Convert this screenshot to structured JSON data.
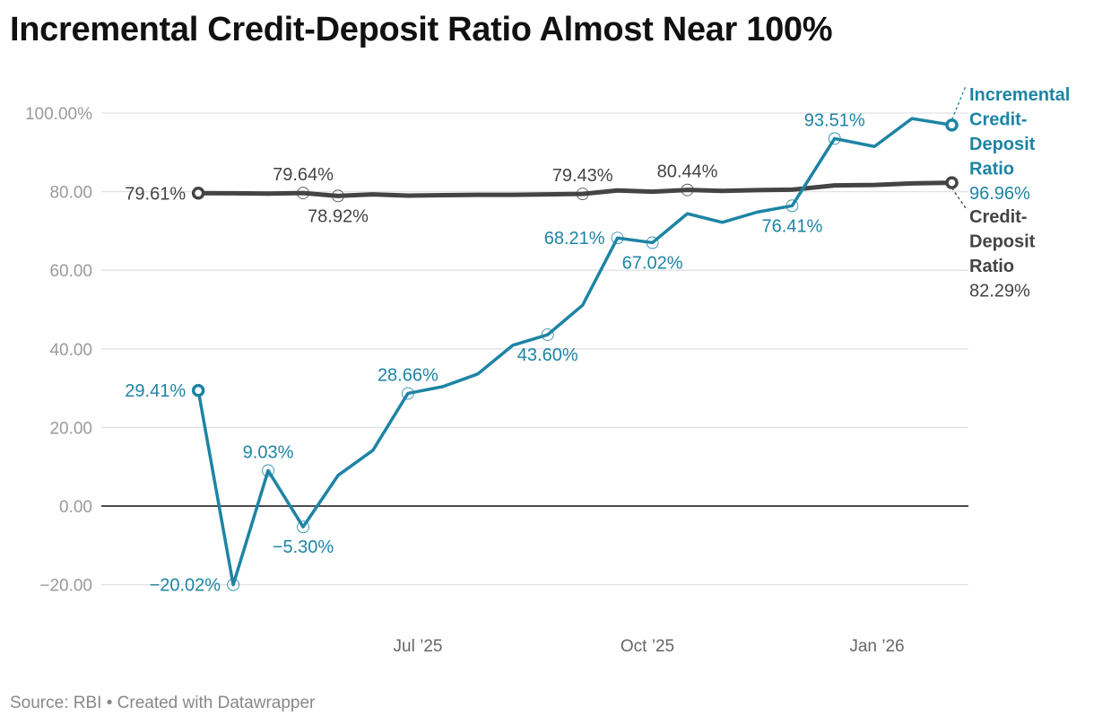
{
  "title": "Incremental Credit-Deposit Ratio Almost Near 100%",
  "footer": {
    "source": "Source: RBI",
    "separator": "•",
    "credit": "Created with Datawrapper"
  },
  "chart_data": {
    "type": "line",
    "title": "Incremental Credit-Deposit Ratio Almost Near 100%",
    "xlabel": "",
    "ylabel": "",
    "x": [
      "2025-04-04",
      "2025-04-18",
      "2025-05-02",
      "2025-05-16",
      "2025-05-30",
      "2025-06-13",
      "2025-06-27",
      "2025-07-11",
      "2025-07-25",
      "2025-08-08",
      "2025-08-22",
      "2025-09-05",
      "2025-09-19",
      "2025-10-03",
      "2025-10-17",
      "2025-10-31",
      "2025-11-14",
      "2025-11-28",
      "2025-12-15",
      "2025-12-31",
      "2026-01-15",
      "2026-01-31"
    ],
    "ylim": [
      -20,
      100
    ],
    "yticks": [
      {
        "value": 100,
        "label": "100.00%"
      },
      {
        "value": 80,
        "label": "80.00"
      },
      {
        "value": 60,
        "label": "60.00"
      },
      {
        "value": 40,
        "label": "40.00"
      },
      {
        "value": 20,
        "label": "20.00"
      },
      {
        "value": 0,
        "label": "0.00"
      },
      {
        "value": -20,
        "label": "−20.00"
      }
    ],
    "xticks": [
      {
        "date": "2025-07-01",
        "label": "Jul ’25"
      },
      {
        "date": "2025-10-01",
        "label": "Oct ’25"
      },
      {
        "date": "2026-01-01",
        "label": "Jan ’26"
      }
    ],
    "grid": true,
    "legend": "direct labels at right end",
    "series": [
      {
        "name_lines": [
          "Incremental",
          "Credit-",
          "Deposit",
          "Ratio"
        ],
        "name": "Incremental Credit-Deposit Ratio",
        "color": "#1d84a4",
        "end_value_label": "96.96%",
        "values": [
          29.41,
          -20.02,
          9.03,
          -5.3,
          7.8,
          14.2,
          28.66,
          30.4,
          33.6,
          40.9,
          43.6,
          51.1,
          68.21,
          67.02,
          74.4,
          72.2,
          74.8,
          76.41,
          93.51,
          91.5,
          98.6,
          96.96
        ],
        "labels": [
          {
            "x": "2025-04-04",
            "text": "29.41%"
          },
          {
            "x": "2025-04-18",
            "text": "−20.02%"
          },
          {
            "x": "2025-05-02",
            "text": "9.03%"
          },
          {
            "x": "2025-05-16",
            "text": "−5.30%"
          },
          {
            "x": "2025-06-27",
            "text": "28.66%"
          },
          {
            "x": "2025-08-22",
            "text": "43.60%"
          },
          {
            "x": "2025-09-19",
            "text": "68.21%"
          },
          {
            "x": "2025-10-03",
            "text": "67.02%"
          },
          {
            "x": "2025-11-28",
            "text": "76.41%"
          },
          {
            "x": "2025-12-15",
            "text": "93.51%"
          }
        ]
      },
      {
        "name_lines": [
          "Credit-",
          "Deposit",
          "Ratio"
        ],
        "name": "Credit-Deposit Ratio",
        "color": "#444444",
        "end_value_label": "82.29%",
        "values": [
          79.61,
          79.6,
          79.5,
          79.64,
          78.92,
          79.3,
          79.0,
          79.1,
          79.2,
          79.2,
          79.3,
          79.43,
          80.3,
          80.0,
          80.44,
          80.2,
          80.4,
          80.5,
          81.6,
          81.7,
          82.1,
          82.29
        ],
        "labels": [
          {
            "x": "2025-04-04",
            "text": "79.61%"
          },
          {
            "x": "2025-05-16",
            "text": "79.64%"
          },
          {
            "x": "2025-05-30",
            "text": "78.92%"
          },
          {
            "x": "2025-09-05",
            "text": "79.43%"
          },
          {
            "x": "2025-10-17",
            "text": "80.44%"
          }
        ]
      }
    ]
  }
}
